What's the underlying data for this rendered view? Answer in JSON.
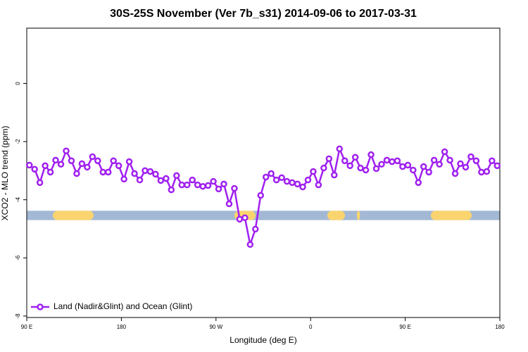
{
  "chart_data": {
    "type": "line",
    "title": "30S-25S November (Ver 7b_s31)   2014-09-06 to 2017-03-31",
    "x_label": "Longitude (deg E)",
    "y_label": "XCO2 - MLO trend (ppm)",
    "x": [
      92.5,
      97.5,
      102.5,
      107.5,
      112.5,
      117.5,
      122.5,
      127.5,
      132.5,
      137.5,
      142.5,
      147.5,
      152.5,
      157.5,
      162.5,
      167.5,
      172.5,
      177.5,
      182.5,
      187.5,
      192.5,
      197.5,
      202.5,
      207.5,
      212.5,
      217.5,
      222.5,
      227.5,
      232.5,
      237.5,
      242.5,
      247.5,
      252.5,
      257.5,
      262.5,
      267.5,
      272.5,
      277.5,
      282.5,
      287.5,
      292.5,
      297.5,
      302.5,
      307.5,
      312.5,
      317.5,
      322.5,
      327.5,
      332.5,
      337.5,
      342.5,
      347.5,
      352.5,
      357.5,
      362.5,
      367.5,
      372.5,
      377.5,
      382.5,
      387.5,
      392.5,
      397.5,
      402.5,
      407.5,
      412.5,
      417.5,
      422.5,
      427.5,
      432.5,
      437.5,
      442.5,
      447.5,
      452.5,
      457.5,
      462.5,
      467.5,
      472.5,
      477.5,
      482.5,
      487.5,
      492.5,
      497.5,
      502.5,
      507.5,
      512.5,
      517.5,
      522.5,
      527.5,
      532.5,
      537.5
    ],
    "series": [
      {
        "name": "Land (Nadir&Glint) and Ocean (Glint)",
        "color": "#a020f0",
        "values": [
          -2.81,
          -2.95,
          -3.41,
          -2.83,
          -3.05,
          -2.64,
          -2.78,
          -2.32,
          -2.66,
          -3.1,
          -2.76,
          -2.88,
          -2.52,
          -2.66,
          -3.05,
          -3.05,
          -2.66,
          -2.83,
          -3.29,
          -2.69,
          -3.1,
          -3.32,
          -3.0,
          -3.03,
          -3.12,
          -3.34,
          -3.27,
          -3.66,
          -3.17,
          -3.49,
          -3.49,
          -3.32,
          -3.49,
          -3.54,
          -3.51,
          -3.37,
          -3.63,
          -3.46,
          -4.14,
          -3.61,
          -4.67,
          -4.62,
          -5.54,
          -5.01,
          -3.85,
          -3.22,
          -3.1,
          -3.32,
          -3.24,
          -3.37,
          -3.41,
          -3.46,
          -3.56,
          -3.32,
          -3.03,
          -3.49,
          -2.91,
          -2.59,
          -3.15,
          -2.25,
          -2.66,
          -2.83,
          -2.54,
          -2.91,
          -2.98,
          -2.45,
          -2.93,
          -2.78,
          -2.64,
          -2.69,
          -2.66,
          -2.86,
          -2.81,
          -2.98,
          -3.41,
          -2.86,
          -3.05,
          -2.64,
          -2.78,
          -2.35,
          -2.64,
          -3.1,
          -2.76,
          -2.88,
          -2.52,
          -2.66,
          -3.05,
          -3.03,
          -2.66,
          -2.83
        ]
      }
    ],
    "surface_band": {
      "ylim": [
        -4.38,
        -4.7
      ],
      "color": "#a3b8d4",
      "land_color": "#fad46e",
      "land": [
        [
          114.8,
          153.6
        ],
        [
          287.5,
          307.6
        ],
        [
          375.9,
          392.7
        ],
        [
          404,
          407
        ],
        [
          474.4,
          513.3
        ]
      ]
    },
    "xlim": [
      90,
      540
    ],
    "xticks": [
      {
        "value": 90,
        "label": "90 E"
      },
      {
        "value": 180,
        "label": "180"
      },
      {
        "value": 270,
        "label": "90 W"
      },
      {
        "value": 360,
        "label": "0"
      },
      {
        "value": 450,
        "label": "90 E"
      },
      {
        "value": 540,
        "label": "180"
      }
    ],
    "ylim": [
      -8.05,
      1.9
    ],
    "yticks": [
      0,
      -2,
      -4,
      -6,
      -8
    ],
    "legend": "lower left"
  }
}
